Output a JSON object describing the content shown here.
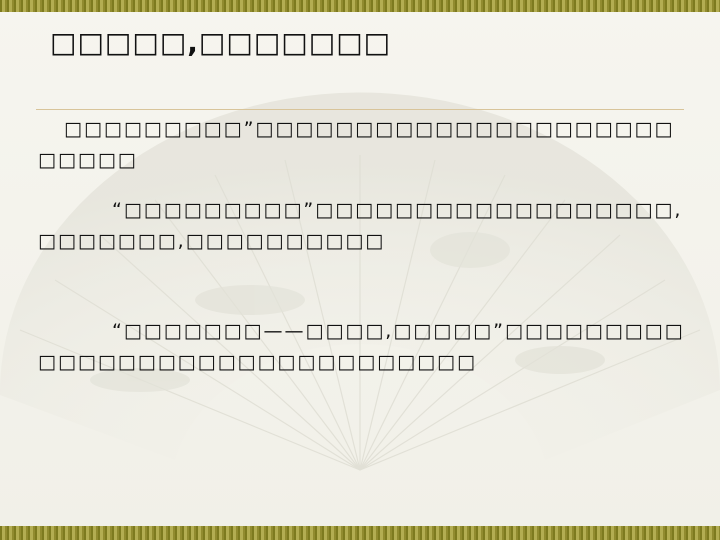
{
  "slide": {
    "title": "□□□□□,□□□□□□□",
    "paragraphs": [
      "□□□□□□□□□”□□□□□□□□□□□□□□□□□□□□□□□□□□",
      "“□□□□□□□□□”□□□□□□□□□□□□□□□□□□,□□□□□□□,□□□□□□□□□□",
      "“□□□□□□□——□□□□,□□□□□”□□□□□□□□□□□□□□□□□□□□□□□□□□□□□□□"
    ]
  },
  "colors": {
    "bar": "#8f8a2e",
    "background": "#f4f3ec",
    "divider": "#d8c49a",
    "text": "#111111"
  }
}
